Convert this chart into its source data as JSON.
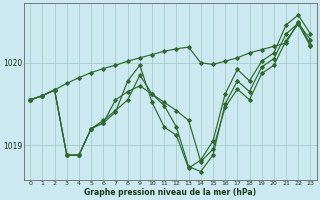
{
  "title": "Graphe pression niveau de la mer (hPa)",
  "background_color": "#cce8f0",
  "grid_color": "#99ccbb",
  "line_color": "#2d6a2d",
  "xlim": [
    -0.5,
    23.5
  ],
  "ylim": [
    1018.58,
    1020.72
  ],
  "yticks": [
    1019,
    1020
  ],
  "xticks": [
    0,
    1,
    2,
    3,
    4,
    5,
    6,
    7,
    8,
    9,
    10,
    11,
    12,
    13,
    14,
    15,
    16,
    17,
    18,
    19,
    20,
    21,
    22,
    23
  ],
  "s1": [
    1019.55,
    1019.6,
    1019.67,
    1019.75,
    1019.82,
    1019.88,
    1019.93,
    1019.97,
    1020.02,
    1020.06,
    1020.1,
    1020.14,
    1020.17,
    1020.19,
    1020.0,
    1019.98,
    1020.02,
    1020.06,
    1020.12,
    1020.16,
    1020.2,
    1020.24,
    1020.5,
    1020.22
  ],
  "s2": [
    1019.55,
    1019.6,
    1019.67,
    1018.88,
    1018.88,
    1019.2,
    1019.3,
    1019.42,
    1019.55,
    1019.85,
    1019.62,
    1019.48,
    1019.22,
    1018.74,
    1018.68,
    1018.88,
    1019.5,
    1019.78,
    1019.65,
    1019.95,
    1020.05,
    1020.35,
    1020.48,
    1020.28
  ],
  "s3": [
    1019.55,
    1019.6,
    1019.67,
    1018.88,
    1018.88,
    1019.2,
    1019.27,
    1019.4,
    1019.78,
    1019.97,
    1019.52,
    1019.22,
    1019.12,
    1018.72,
    1018.82,
    1019.05,
    1019.62,
    1019.92,
    1019.78,
    1020.02,
    1020.12,
    1020.46,
    1020.58,
    1020.35
  ],
  "s4": [
    1019.55,
    1019.6,
    1019.67,
    1018.88,
    1018.88,
    1019.2,
    1019.27,
    1019.55,
    1019.65,
    1019.72,
    1019.62,
    1019.52,
    1019.42,
    1019.3,
    1018.8,
    1018.95,
    1019.46,
    1019.68,
    1019.55,
    1019.87,
    1019.97,
    1020.27,
    1020.47,
    1020.2
  ]
}
